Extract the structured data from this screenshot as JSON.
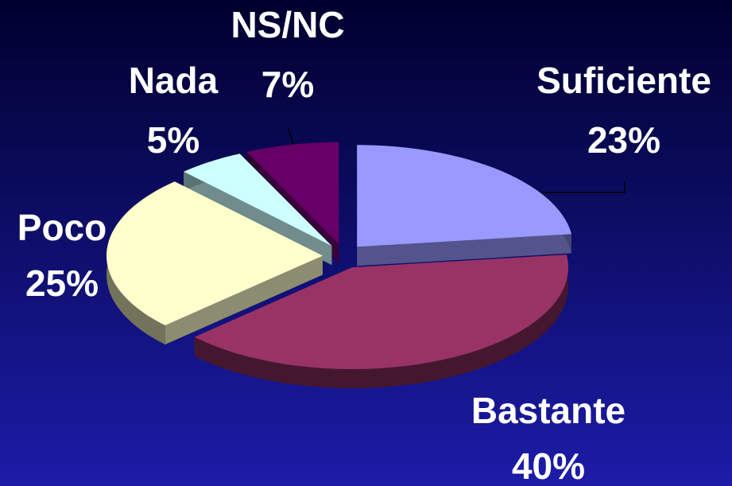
{
  "chart_data": {
    "type": "pie",
    "categories": [
      "Suficiente",
      "Bastante",
      "Poco",
      "Nada",
      "NS/NC"
    ],
    "values": [
      23,
      40,
      25,
      5,
      7
    ],
    "value_labels": [
      "23%",
      "40%",
      "25%",
      "5%",
      "7%"
    ],
    "colors": [
      "#9999ff",
      "#993366",
      "#ffffcc",
      "#ccffff",
      "#660066"
    ]
  }
}
